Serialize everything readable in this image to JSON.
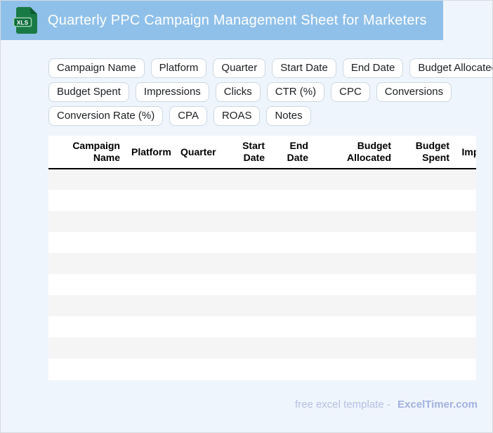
{
  "header": {
    "title": "Quarterly PPC Campaign Management Sheet for Marketers",
    "icon_label": "XLS",
    "background": "#8fc0e9"
  },
  "chips": {
    "rows": [
      [
        "Campaign Name",
        "Platform",
        "Quarter",
        "Start Date",
        "End Date",
        "Budget Allocated"
      ],
      [
        "Budget Spent",
        "Impressions",
        "Clicks",
        "CTR (%)",
        "CPC",
        "Conversions"
      ],
      [
        "Conversion Rate (%)",
        "CPA",
        "ROAS",
        "Notes"
      ]
    ]
  },
  "table": {
    "columns": [
      "Campaign Name",
      "Platform",
      "Quarter",
      "Start Date",
      "End Date",
      "Budget Allocated",
      "Budget Spent",
      "Impressions"
    ],
    "row_count": 10,
    "rows_empty": true,
    "alt_row_color": "#f5f5f6"
  },
  "footer": {
    "prefix": "free excel template -",
    "brand": "ExcelTimer.com"
  },
  "colors": {
    "page_background": "#eff5fc",
    "header_background": "#8fc0e9",
    "chip_border": "#ccd7e4",
    "alt_row": "#f5f5f6",
    "footer_text": "#b5c0e5",
    "footer_brand": "#a2b1e1",
    "icon_green": "#1a7a45"
  }
}
